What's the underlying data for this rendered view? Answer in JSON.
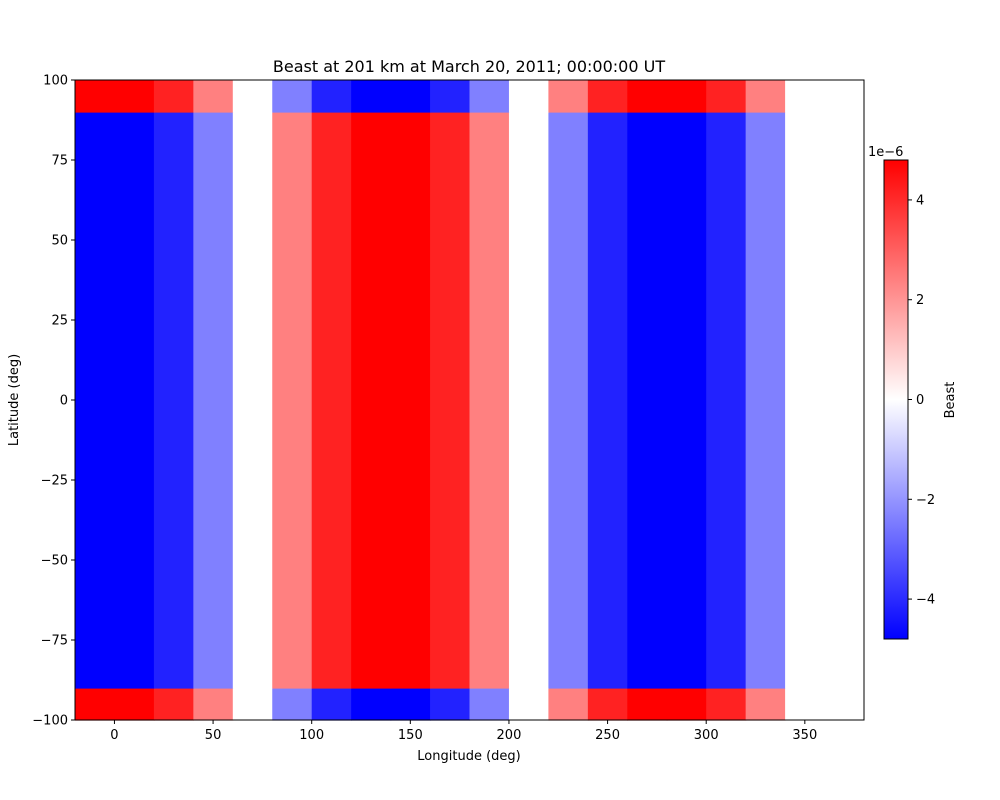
{
  "chart_data": {
    "type": "heatmap",
    "title": "Beast at  201 km at March 20, 2011; 00:00:00 UT",
    "xlabel": "Longitude (deg)",
    "ylabel": "Latitude (deg)",
    "xlim": [
      -20,
      380
    ],
    "ylim": [
      -100,
      100
    ],
    "x_ticks": [
      0,
      50,
      100,
      150,
      200,
      250,
      300,
      350
    ],
    "y_ticks": [
      100,
      75,
      50,
      25,
      0,
      -25,
      -50,
      -75,
      -100
    ],
    "x_tick_labels": [
      "0",
      "50",
      "100",
      "150",
      "200",
      "250",
      "300",
      "350"
    ],
    "y_tick_labels": [
      "100",
      "75",
      "50",
      "25",
      "0",
      "−25",
      "−50",
      "−75",
      "−100"
    ],
    "x_edges": [
      -20,
      20,
      40,
      60,
      80,
      100,
      120,
      140,
      160,
      180,
      200,
      220,
      240,
      260,
      280,
      300,
      320,
      340,
      380
    ],
    "y_edges": [
      -100,
      -90,
      90,
      100
    ],
    "values": [
      [
        4.8,
        4.16,
        2.4,
        0.0,
        -2.4,
        -4.16,
        -4.8,
        -4.8,
        -4.16,
        -2.4,
        0.0,
        2.4,
        4.16,
        4.8,
        4.8,
        4.16,
        2.4,
        0.0
      ],
      [
        -4.8,
        -4.16,
        -2.4,
        0.0,
        2.4,
        4.16,
        4.8,
        4.8,
        4.16,
        2.4,
        0.0,
        -2.4,
        -4.16,
        -4.8,
        -4.8,
        -4.16,
        -2.4,
        0.0
      ],
      [
        4.8,
        4.16,
        2.4,
        0.0,
        -2.4,
        -4.16,
        -4.8,
        -4.8,
        -4.16,
        -2.4,
        0.0,
        2.4,
        4.16,
        4.8,
        4.8,
        4.16,
        2.4,
        0.0
      ]
    ],
    "value_scale": 1e-06,
    "colormap": "bwr",
    "colormap_colors": {
      "min": "#0000ff",
      "mid": "#ffffff",
      "max": "#ff0000"
    },
    "colorbar": {
      "label": "Beast",
      "multiplier_text": "1e−6",
      "vmin": -4.8,
      "vmax": 4.8,
      "ticks": [
        4,
        2,
        0,
        -2,
        -4
      ],
      "tick_labels": [
        "4",
        "2",
        "0",
        "−2",
        "−4"
      ]
    },
    "grid": false,
    "legend": "none"
  }
}
